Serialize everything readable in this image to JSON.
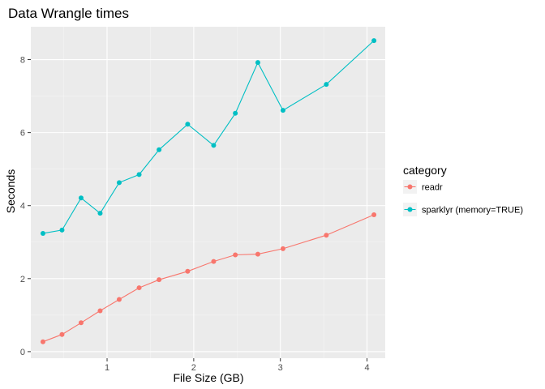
{
  "chart_data": {
    "type": "line",
    "title": "Data Wrangle times",
    "xlabel": "File Size (GB)",
    "ylabel": "Seconds",
    "xlim": [
      0.12,
      4.21
    ],
    "ylim": [
      -0.18,
      8.9
    ],
    "x_ticks": [
      1,
      2,
      3,
      4
    ],
    "y_ticks": [
      0,
      2,
      4,
      6,
      8
    ],
    "grid": true,
    "legend": {
      "title": "category",
      "placement": "right"
    },
    "series": [
      {
        "name": "readr",
        "color": "#F8766D",
        "x": [
          0.26,
          0.48,
          0.7,
          0.92,
          1.14,
          1.37,
          1.6,
          1.93,
          2.23,
          2.48,
          2.74,
          3.03,
          3.53,
          4.08
        ],
        "y": [
          0.27,
          0.47,
          0.79,
          1.12,
          1.43,
          1.75,
          1.97,
          2.2,
          2.47,
          2.65,
          2.67,
          2.82,
          3.19,
          3.75
        ]
      },
      {
        "name": "sparklyr (memory=TRUE)",
        "color": "#00BFC4",
        "x": [
          0.26,
          0.48,
          0.7,
          0.92,
          1.14,
          1.37,
          1.6,
          1.93,
          2.23,
          2.48,
          2.74,
          3.03,
          3.53,
          4.08
        ],
        "y": [
          3.24,
          3.33,
          4.21,
          3.79,
          4.63,
          4.85,
          5.53,
          6.23,
          5.65,
          6.53,
          7.92,
          6.61,
          7.32,
          8.52
        ]
      }
    ]
  }
}
